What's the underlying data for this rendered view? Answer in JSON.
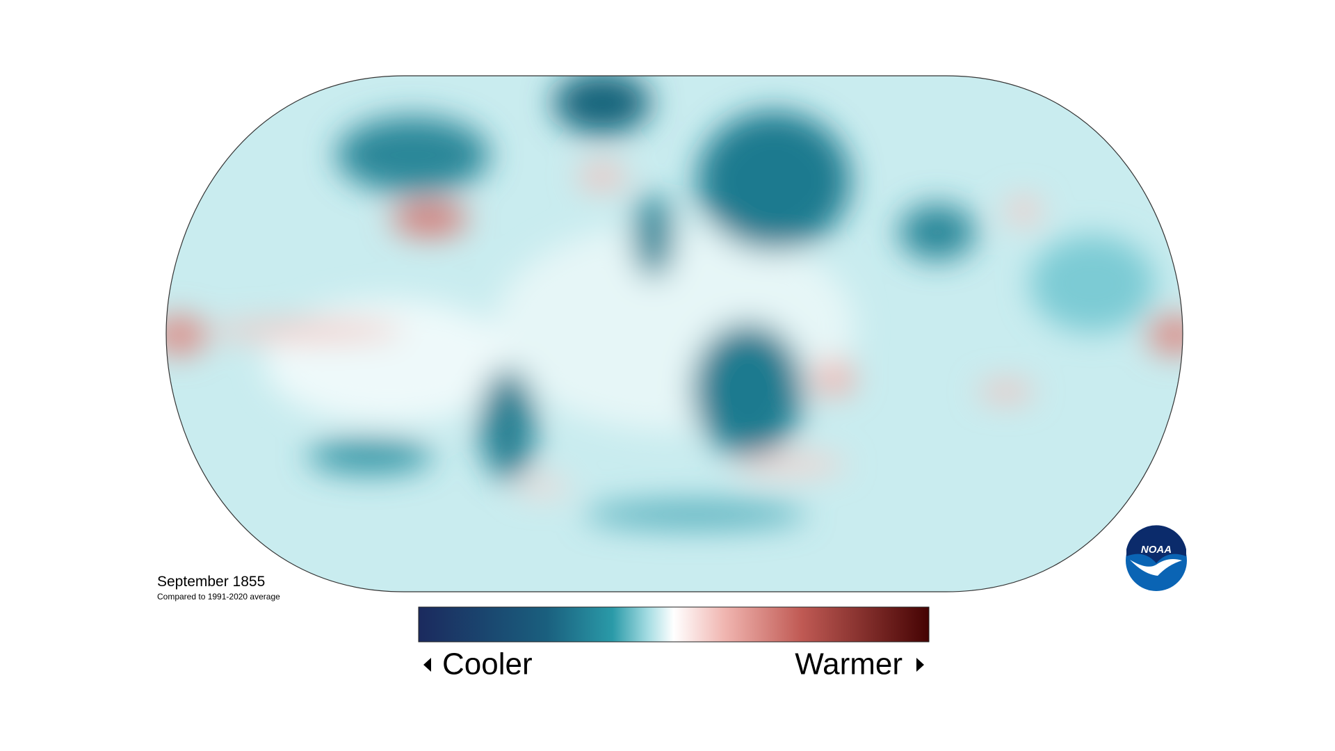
{
  "map": {
    "title": "September 1855",
    "subtitle": "Compared to 1991-2020 average"
  },
  "legend": {
    "low": "Cooler",
    "high": "Warmer"
  },
  "logo": "NOAA"
}
